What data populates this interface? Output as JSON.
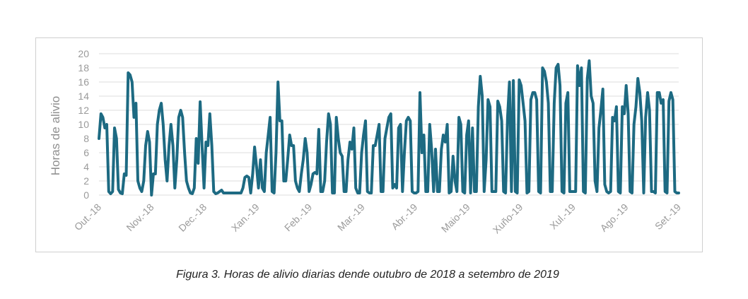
{
  "chart_data": {
    "type": "line",
    "title": "",
    "xlabel": "",
    "ylabel": "Horas de alivio",
    "ylim": [
      0,
      20
    ],
    "yticks": [
      "0",
      "2",
      "4",
      "6",
      "8",
      "10",
      "12",
      "14",
      "16",
      "18",
      "20"
    ],
    "xticks": [
      "Out.-18",
      "Nov.-18",
      "Dec.-18",
      "Xan.-19",
      "Feb.-19",
      "Mar.-19",
      "Abr.-19",
      "Maio-19",
      "Xuño-19",
      "Xul.-19",
      "Ago.-19",
      "Set.-19"
    ],
    "grid": true,
    "legend": "none",
    "line_color": "#1d6a82",
    "series": [
      {
        "values": [
          8,
          11.5,
          11,
          9.5,
          10,
          0.5,
          0.2,
          0.5,
          9.5,
          8,
          0.8,
          0.3,
          0.2,
          3,
          2.8,
          17.3,
          17,
          16,
          11,
          13,
          2,
          1,
          0.5,
          2,
          7,
          9,
          7.5,
          0,
          3,
          3,
          10,
          12,
          13,
          10,
          5,
          2,
          7,
          10,
          7,
          1,
          5,
          11,
          12,
          11,
          6,
          2,
          1,
          0.3,
          0.2,
          1,
          8,
          4.5,
          13.2,
          7,
          1,
          7.5,
          7,
          11.5,
          7,
          0.5,
          0.2,
          0.3,
          0.5,
          0.7,
          0.3,
          0.3,
          0.3,
          0.3,
          0.3,
          0.3,
          0.3,
          0.3,
          0.3,
          0.3,
          1,
          2.5,
          2.7,
          2.5,
          0.3,
          3,
          6.8,
          4,
          1,
          5,
          1,
          0.5,
          6,
          8.5,
          11,
          0.5,
          0.3,
          6,
          16,
          10.5,
          10.5,
          2,
          2,
          5,
          8.5,
          7,
          7,
          2,
          1,
          0.5,
          3,
          5,
          8,
          6,
          0.5,
          1.5,
          3,
          3.2,
          3,
          9.3,
          0.5,
          0.5,
          2,
          7.5,
          11.5,
          10,
          0.3,
          0.3,
          11,
          8,
          6,
          5.5,
          0.5,
          0.5,
          5,
          7.5,
          6.5,
          9.5,
          1,
          0.3,
          0.3,
          6,
          8.5,
          10.5,
          0.5,
          0.3,
          0.3,
          7,
          7,
          8.5,
          10,
          0.5,
          0.5,
          8,
          9.5,
          11,
          11.5,
          1,
          1.5,
          1,
          9.5,
          10,
          0.5,
          6,
          10.5,
          11,
          10.5,
          0.5,
          0.3,
          0.3,
          0.5,
          14.5,
          6,
          8.5,
          0.5,
          0.5,
          10,
          6.5,
          0.5,
          6.5,
          0.5,
          0.5,
          6.5,
          8.5,
          7.5,
          10,
          0.3,
          0.5,
          5.5,
          2,
          0.5,
          11,
          10,
          0.5,
          0.3,
          8.5,
          10.5,
          0.3,
          9.5,
          0.5,
          0.5,
          12.5,
          16.8,
          14,
          0.5,
          5,
          13.5,
          12.5,
          0.5,
          0.5,
          0.5,
          13.3,
          12.5,
          10.5,
          0.5,
          0.3,
          11,
          16,
          0.5,
          16.2,
          0.5,
          0.3,
          16.3,
          15.5,
          13,
          10.5,
          0.3,
          0.5,
          13.5,
          14.5,
          14.5,
          13.5,
          0.5,
          0.3,
          18,
          17.5,
          16,
          13,
          0.5,
          0.5,
          13,
          18,
          18.5,
          15.5,
          0.5,
          0.3,
          13,
          14.5,
          0.5,
          0.5,
          0.5,
          0.5,
          18.3,
          15.5,
          18,
          0.5,
          0.3,
          16.5,
          19,
          14,
          13,
          2,
          0.5,
          9.5,
          12,
          15,
          1.5,
          0.5,
          0.3,
          0.5,
          11,
          10.5,
          12.5,
          0.5,
          0.3,
          12.5,
          11.5,
          15.5,
          11.5,
          0.5,
          0.3,
          10,
          12.5,
          16.5,
          14.5,
          10.5,
          0.3,
          11,
          14.5,
          12,
          0.5,
          0.5,
          0.3,
          14.5,
          14.5,
          13,
          13.5,
          0.5,
          0.3,
          13.3,
          14.5,
          13.5,
          0.5,
          0.3,
          0.3
        ]
      }
    ]
  },
  "caption": "Figura 3. Horas de alivio diarias dende outubro de 2018 a setembro de 2019"
}
